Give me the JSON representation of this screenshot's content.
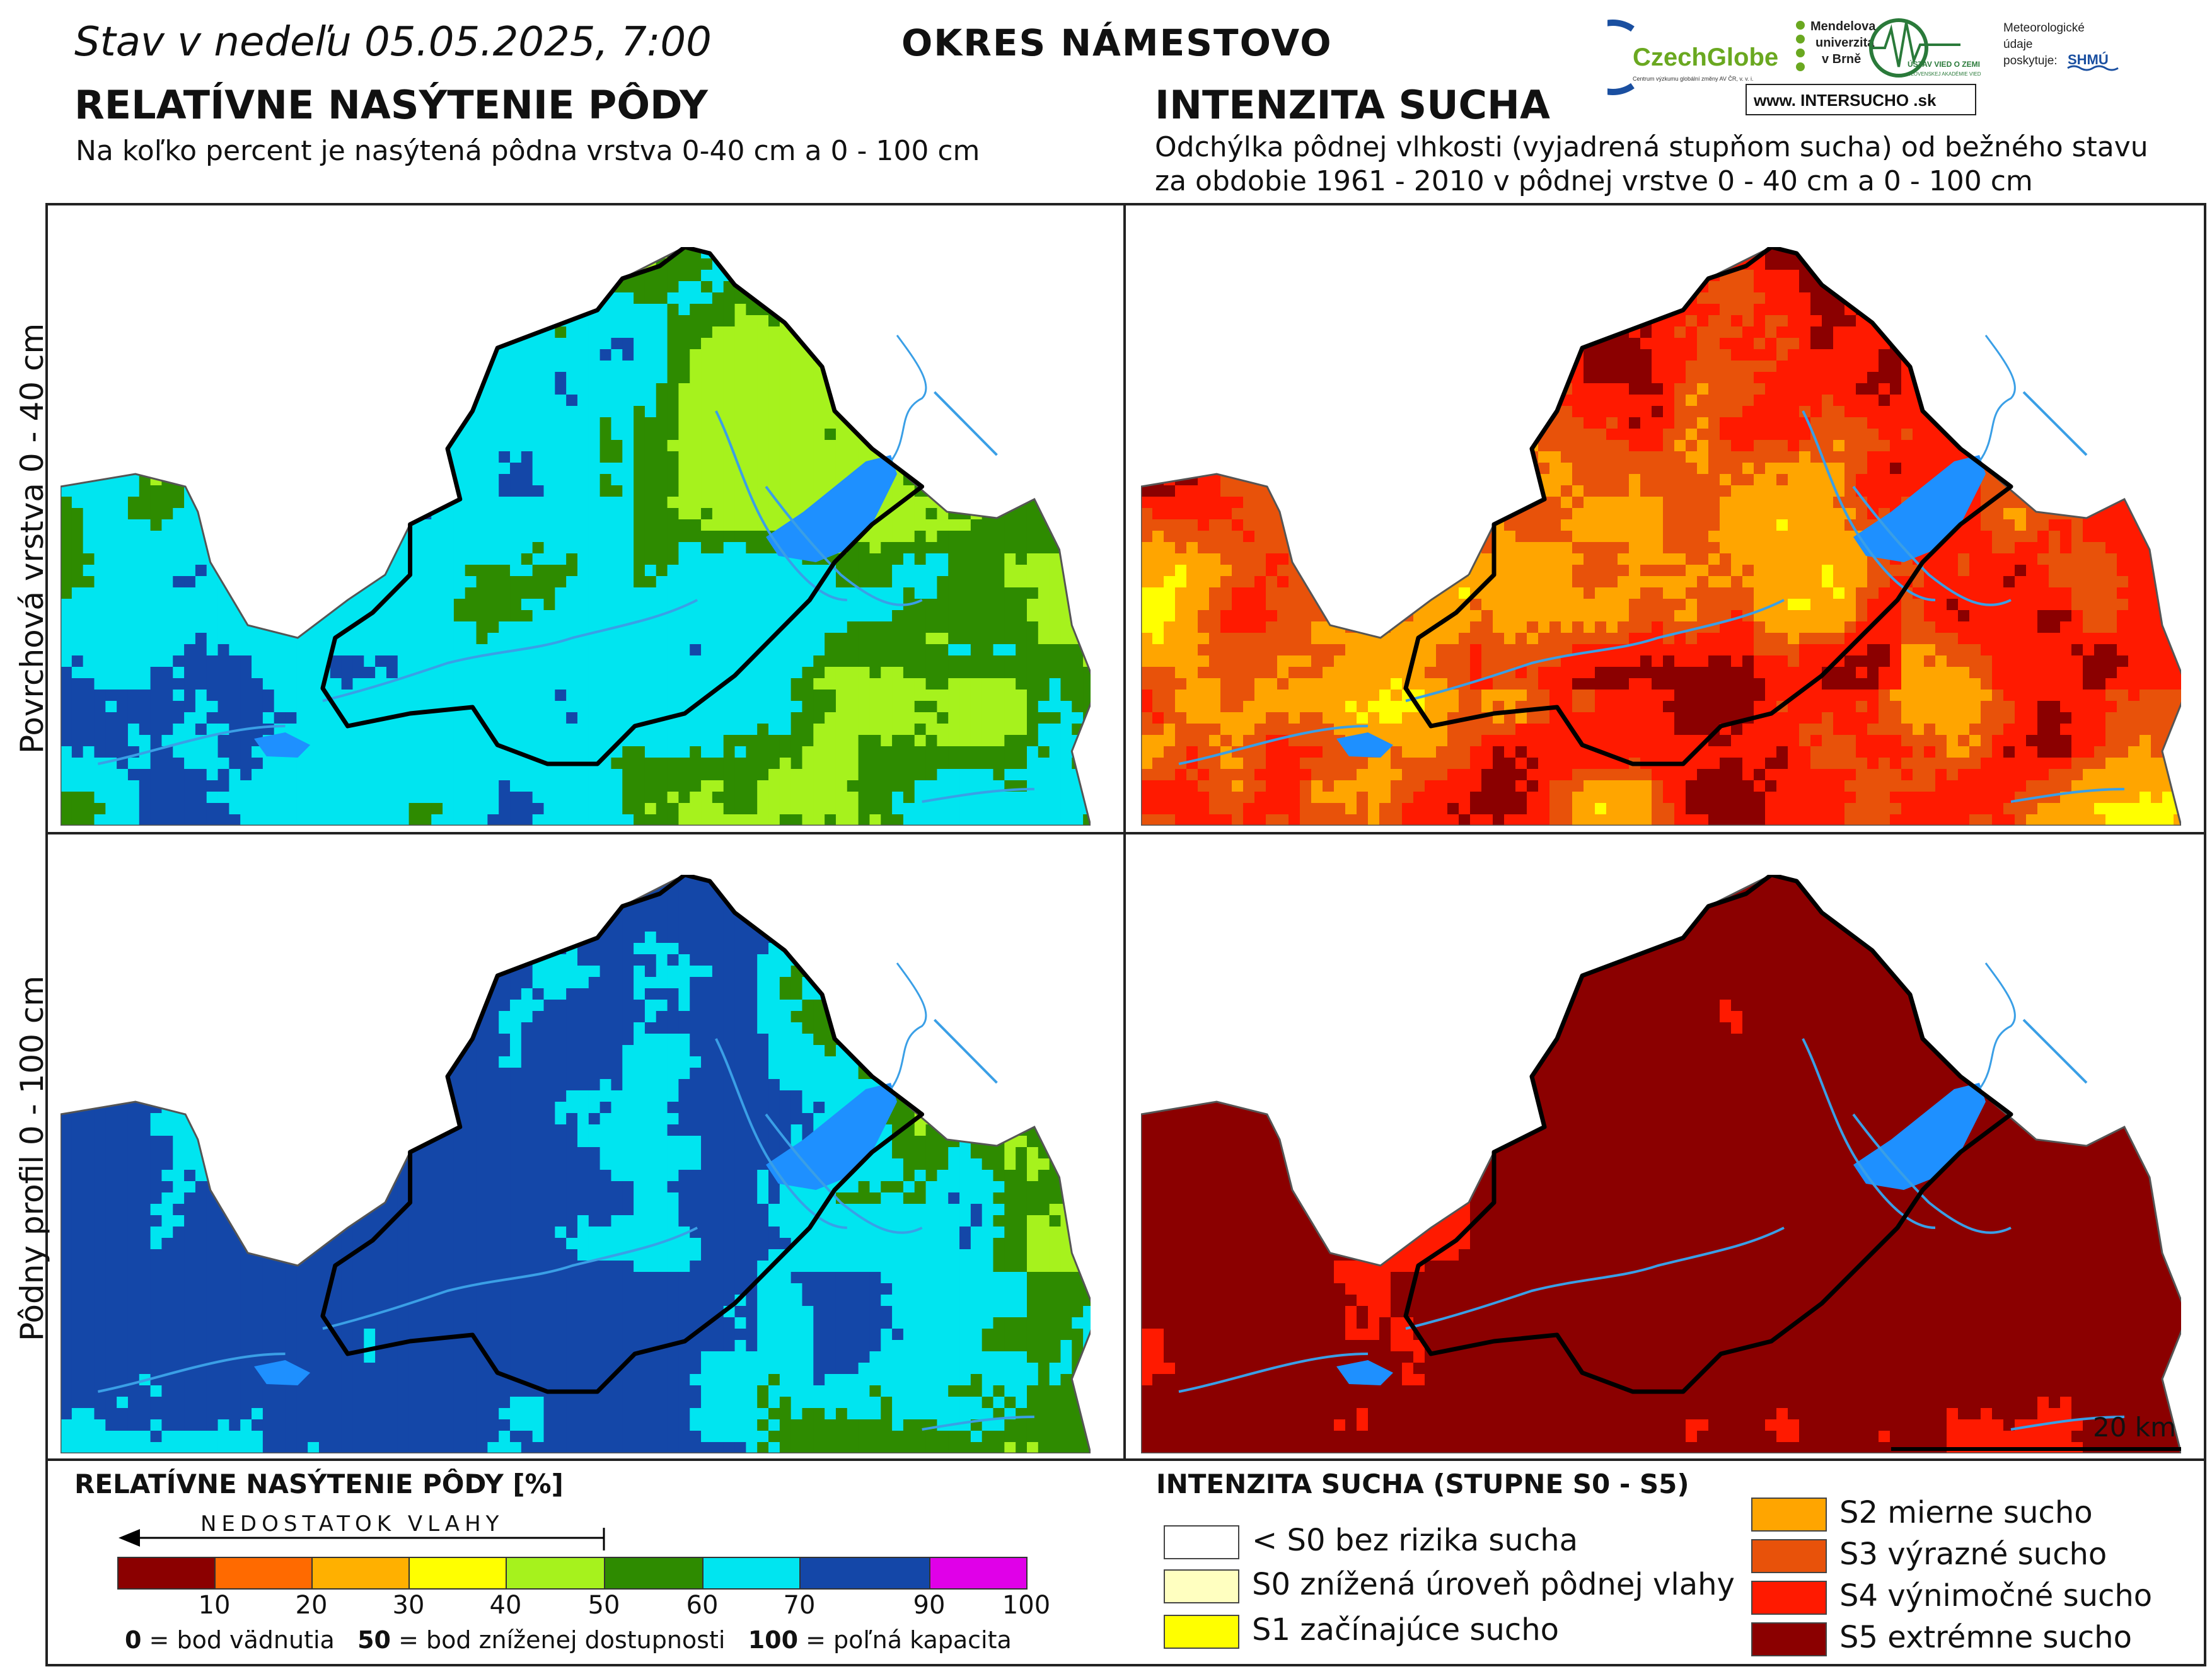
{
  "header": {
    "date_text": "Stav v nedeľu 05.05.2025, 7:00",
    "district": "OKRES NÁMESTOVO"
  },
  "logos": {
    "czechglobe": "CzechGlobe",
    "czechglobe_sub": "Centrum výzkumu globální změny AV ČR, v. v. i.",
    "mendelu": [
      "Mendelova",
      "univerzita",
      "v Brně"
    ],
    "ustav": "ÚSTAV VIED O ZEMI",
    "ustav_sub": "SLOVENSKEJ AKADÉMIE VIED",
    "meteo": [
      "Meteorologické",
      "údaje",
      "poskytuje:"
    ],
    "shmu": "SHMÚ",
    "intersucho": "www. INTERSUCHO .sk"
  },
  "left_section": {
    "title": "RELATÍVNE NASÝTENIE PÔDY",
    "subtitle": "Na koľko percent je nasýtená pôdna vrstva 0-40 cm a 0 - 100 cm"
  },
  "right_section": {
    "title": "INTENZITA SUCHA",
    "subtitle_lines": [
      "Odchýlka pôdnej vlhkosti (vyjadrená stupňom sucha) od bežného stavu",
      "za obdobie 1961 - 2010 v pôdnej vrstve 0 - 40 cm a 0 - 100 cm"
    ]
  },
  "row_labels": {
    "top": "Povrchová vrstva 0 - 40 cm",
    "bottom": "Pôdny profil 0 - 100 cm"
  },
  "scale_bar": {
    "label": "20 km"
  },
  "saturation_legend": {
    "title": "RELATÍVNE NASÝTENIE PÔDY [%]",
    "arrow_label": "NEDOSTATOK VLAHY",
    "ticks": [
      "10",
      "20",
      "30",
      "40",
      "50",
      "60",
      "70",
      "90",
      "100"
    ],
    "colors": [
      "#8b0000",
      "#ff6a00",
      "#ffb000",
      "#ffff00",
      "#a6f21d",
      "#2e8b00",
      "#00e5f0",
      "#1447a8",
      "#e000e8"
    ],
    "footnote": [
      {
        "value": "0",
        "text": "= bod vädnutia"
      },
      {
        "value": "50",
        "text": "= bod zníženej dostupnosti"
      },
      {
        "value": "100",
        "text": "= poľná kapacita"
      }
    ]
  },
  "drought_legend": {
    "title": "INTENZITA SUCHA (STUPNE S0 - S5)",
    "classes": [
      {
        "label": "< S0 bez rizika sucha",
        "color": "#ffffff"
      },
      {
        "label": "S0 znížená úroveň pôdnej vlahy",
        "color": "#ffffc0"
      },
      {
        "label": "S1 začínajúce sucho",
        "color": "#ffff00"
      },
      {
        "label": "S2 mierne sucho",
        "color": "#ffa500"
      },
      {
        "label": "S3 výrazné sucho",
        "color": "#e8520a"
      },
      {
        "label": "S4 výnimočné sucho",
        "color": "#ff1a00"
      },
      {
        "label": "S5 extrémne sucho",
        "color": "#8b0000"
      }
    ]
  },
  "colors": {
    "water": "#1e90ff",
    "river": "#3a9fe6",
    "boundary": "#000000"
  }
}
